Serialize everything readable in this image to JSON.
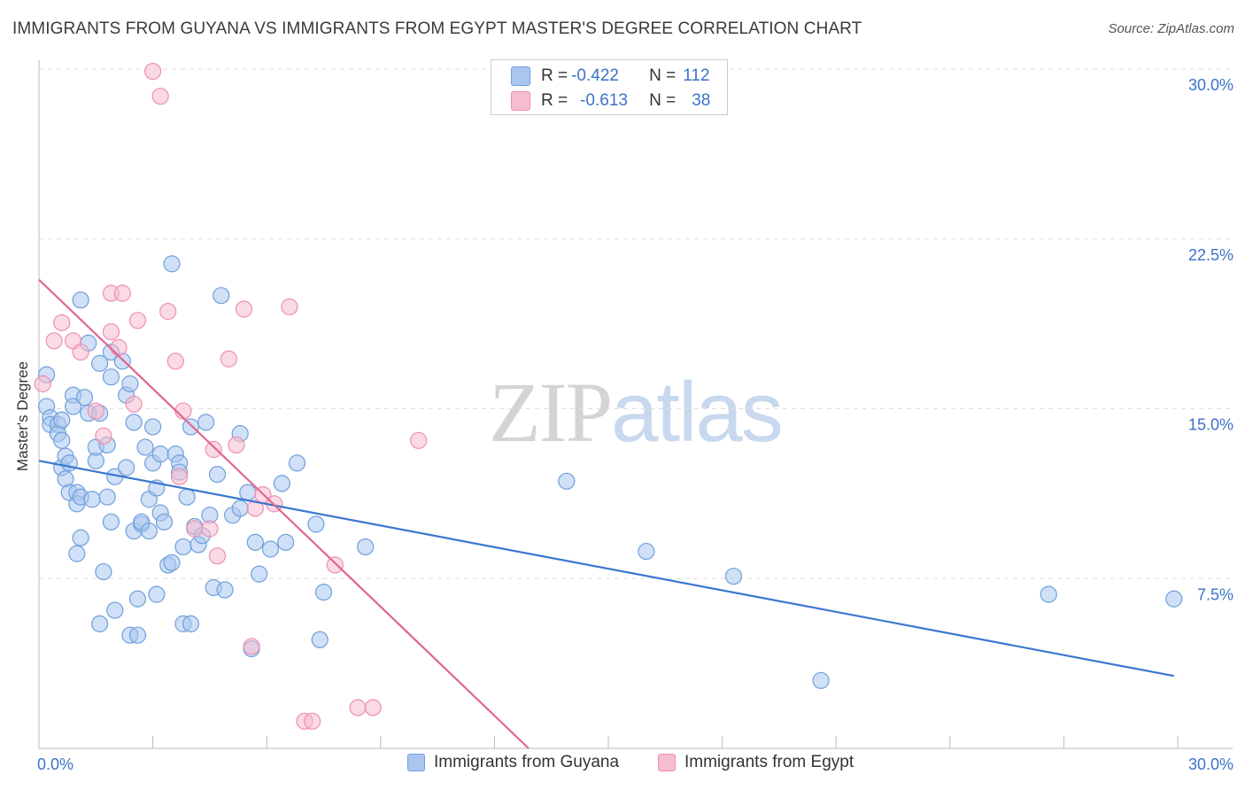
{
  "title": "IMMIGRANTS FROM GUYANA VS IMMIGRANTS FROM EGYPT MASTER'S DEGREE CORRELATION CHART",
  "source": "Source: ZipAtlas.com",
  "watermark": {
    "zip": "ZIP",
    "atlas": "atlas"
  },
  "colors": {
    "guyana_fill": "#aac6ee",
    "guyana_stroke": "#6f9fdc",
    "guyana_line": "#3a78d0",
    "egypt_fill": "#f6bcd0",
    "egypt_stroke": "#ee8fb0",
    "egypt_line": "#e36591",
    "axis_label": "#3a73c8",
    "grid": "#dddddd"
  },
  "legend": {
    "rows": [
      {
        "r_label": "R = ",
        "r_value": "-0.422",
        "n_label": "N = ",
        "n_value": "112"
      },
      {
        "r_label": "R = ",
        "r_value": "-0.613",
        "n_label": "N = ",
        "n_value": "38"
      }
    ],
    "series": [
      "Immigrants from Guyana",
      "Immigrants from Egypt"
    ]
  },
  "chart_data": {
    "type": "scatter",
    "title": "IMMIGRANTS FROM GUYANA VS IMMIGRANTS FROM EGYPT MASTER'S DEGREE CORRELATION CHART",
    "xlabel": "",
    "ylabel": "Master's Degree",
    "xlim": [
      0,
      30
    ],
    "ylim": [
      0,
      30
    ],
    "x_tick_labels": [
      "0.0%",
      "30.0%"
    ],
    "y_ticks": [
      7.5,
      15.0,
      22.5,
      30.0
    ],
    "y_tick_labels": [
      "7.5%",
      "15.0%",
      "22.5%",
      "30.0%"
    ],
    "grid": true,
    "series": [
      {
        "name": "Immigrants from Guyana",
        "r": -0.422,
        "n": 112,
        "trend": {
          "x": [
            0,
            29.9
          ],
          "y": [
            12.7,
            3.2
          ]
        },
        "points": [
          [
            0.2,
            16.5
          ],
          [
            0.2,
            15.1
          ],
          [
            0.3,
            14.6
          ],
          [
            0.3,
            14.3
          ],
          [
            0.5,
            14.3
          ],
          [
            0.5,
            13.9
          ],
          [
            0.6,
            13.6
          ],
          [
            0.6,
            14.5
          ],
          [
            0.6,
            12.4
          ],
          [
            0.7,
            12.9
          ],
          [
            0.7,
            11.9
          ],
          [
            0.8,
            12.6
          ],
          [
            0.8,
            11.3
          ],
          [
            0.9,
            15.6
          ],
          [
            0.9,
            15.1
          ],
          [
            1.0,
            11.3
          ],
          [
            1.0,
            10.8
          ],
          [
            1.0,
            8.6
          ],
          [
            1.1,
            9.3
          ],
          [
            1.1,
            11.1
          ],
          [
            1.1,
            19.8
          ],
          [
            1.2,
            15.5
          ],
          [
            1.3,
            14.8
          ],
          [
            1.3,
            17.9
          ],
          [
            1.4,
            11.0
          ],
          [
            1.5,
            12.7
          ],
          [
            1.5,
            13.3
          ],
          [
            1.6,
            17.0
          ],
          [
            1.6,
            14.8
          ],
          [
            1.6,
            5.5
          ],
          [
            1.7,
            7.8
          ],
          [
            1.8,
            11.1
          ],
          [
            1.8,
            13.4
          ],
          [
            1.9,
            16.4
          ],
          [
            1.9,
            17.5
          ],
          [
            1.9,
            10.0
          ],
          [
            2.0,
            6.1
          ],
          [
            2.0,
            12.0
          ],
          [
            2.2,
            17.1
          ],
          [
            2.3,
            12.4
          ],
          [
            2.3,
            15.6
          ],
          [
            2.4,
            16.1
          ],
          [
            2.4,
            5.0
          ],
          [
            2.5,
            9.6
          ],
          [
            2.5,
            14.4
          ],
          [
            2.6,
            6.6
          ],
          [
            2.6,
            5.0
          ],
          [
            2.7,
            9.9
          ],
          [
            2.7,
            10.0
          ],
          [
            2.8,
            13.3
          ],
          [
            2.9,
            11.0
          ],
          [
            2.9,
            9.6
          ],
          [
            3.0,
            12.6
          ],
          [
            3.0,
            14.2
          ],
          [
            3.1,
            11.5
          ],
          [
            3.1,
            6.8
          ],
          [
            3.2,
            13.0
          ],
          [
            3.2,
            10.4
          ],
          [
            3.3,
            10.0
          ],
          [
            3.4,
            8.1
          ],
          [
            3.5,
            21.4
          ],
          [
            3.5,
            8.2
          ],
          [
            3.6,
            13.0
          ],
          [
            3.7,
            12.6
          ],
          [
            3.7,
            12.2
          ],
          [
            3.8,
            8.9
          ],
          [
            3.8,
            5.5
          ],
          [
            3.9,
            11.1
          ],
          [
            4.0,
            14.2
          ],
          [
            4.0,
            5.5
          ],
          [
            4.1,
            9.8
          ],
          [
            4.2,
            9.0
          ],
          [
            4.3,
            9.4
          ],
          [
            4.4,
            14.4
          ],
          [
            4.5,
            10.3
          ],
          [
            4.6,
            7.1
          ],
          [
            4.7,
            12.1
          ],
          [
            4.8,
            20.0
          ],
          [
            4.9,
            7.0
          ],
          [
            5.1,
            10.3
          ],
          [
            5.3,
            13.9
          ],
          [
            5.3,
            10.6
          ],
          [
            5.5,
            11.3
          ],
          [
            5.6,
            4.4
          ],
          [
            5.7,
            9.1
          ],
          [
            5.8,
            7.7
          ],
          [
            6.1,
            8.8
          ],
          [
            6.4,
            11.7
          ],
          [
            6.5,
            9.1
          ],
          [
            6.8,
            12.6
          ],
          [
            7.3,
            9.9
          ],
          [
            7.4,
            4.8
          ],
          [
            7.5,
            6.9
          ],
          [
            8.6,
            8.9
          ],
          [
            13.9,
            11.8
          ],
          [
            16.0,
            8.7
          ],
          [
            18.3,
            7.6
          ],
          [
            20.6,
            3.0
          ],
          [
            26.6,
            6.8
          ],
          [
            29.9,
            6.6
          ]
        ]
      },
      {
        "name": "Immigrants from Egypt",
        "r": -0.613,
        "n": 38,
        "trend": {
          "x": [
            0,
            12.9
          ],
          "y": [
            20.7,
            0
          ]
        },
        "points": [
          [
            0.1,
            16.1
          ],
          [
            0.4,
            18.0
          ],
          [
            0.6,
            18.8
          ],
          [
            0.9,
            18.0
          ],
          [
            1.1,
            17.5
          ],
          [
            1.5,
            14.9
          ],
          [
            1.7,
            13.8
          ],
          [
            1.9,
            18.4
          ],
          [
            1.9,
            20.1
          ],
          [
            2.1,
            17.7
          ],
          [
            2.2,
            20.1
          ],
          [
            2.5,
            15.2
          ],
          [
            2.6,
            18.9
          ],
          [
            3.0,
            29.9
          ],
          [
            3.2,
            28.8
          ],
          [
            3.4,
            19.3
          ],
          [
            3.6,
            17.1
          ],
          [
            3.7,
            12.0
          ],
          [
            3.8,
            14.9
          ],
          [
            4.1,
            9.7
          ],
          [
            4.5,
            9.7
          ],
          [
            4.6,
            13.2
          ],
          [
            4.7,
            8.5
          ],
          [
            5.0,
            17.2
          ],
          [
            5.2,
            13.4
          ],
          [
            5.4,
            19.4
          ],
          [
            5.6,
            4.5
          ],
          [
            5.7,
            10.6
          ],
          [
            5.9,
            11.2
          ],
          [
            6.2,
            10.8
          ],
          [
            6.6,
            19.5
          ],
          [
            7.0,
            1.2
          ],
          [
            7.2,
            1.2
          ],
          [
            7.8,
            8.1
          ],
          [
            8.4,
            1.8
          ],
          [
            8.8,
            1.8
          ],
          [
            10.0,
            13.6
          ]
        ]
      }
    ]
  }
}
